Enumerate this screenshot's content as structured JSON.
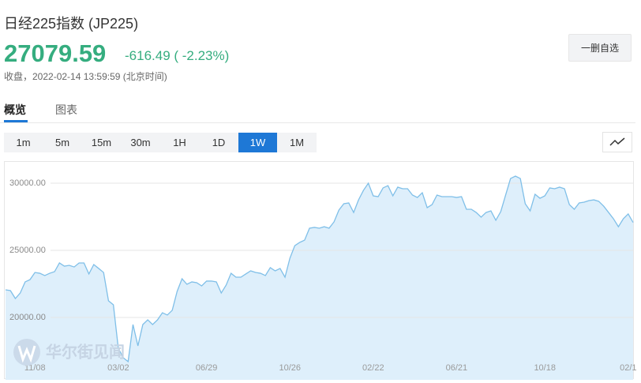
{
  "header": {
    "title": "日经225指数 (JP225)",
    "price": "27079.59",
    "change": "-616.49 ( -2.23%)",
    "status": "收盘，2022-02-14 13:59:59 (北京时间)",
    "button": "一删自选"
  },
  "tabs": {
    "items": [
      "概览",
      "图表"
    ],
    "selected": "概览"
  },
  "periods": {
    "items": [
      "1m",
      "5m",
      "15m",
      "30m",
      "1H",
      "1D",
      "1W",
      "1M"
    ],
    "selected": "1W"
  },
  "watermark": "华尔街见闻",
  "chart_data": {
    "type": "area",
    "line_color": "#7fbfe8",
    "fill_color": "#deeffb",
    "grid": true,
    "ylim": [
      15350,
      31590
    ],
    "yticks": [
      {
        "value": 20000,
        "label": "20000.00"
      },
      {
        "value": 25000,
        "label": "25000.00"
      },
      {
        "value": 30000,
        "label": "30000.00"
      }
    ],
    "categories": [
      null,
      null,
      null,
      null,
      null,
      null,
      "11/08",
      null,
      null,
      null,
      null,
      null,
      null,
      null,
      null,
      null,
      null,
      null,
      null,
      null,
      null,
      null,
      null,
      "03/02",
      null,
      null,
      null,
      null,
      null,
      null,
      null,
      null,
      null,
      null,
      null,
      null,
      null,
      null,
      null,
      null,
      null,
      "06/29",
      null,
      null,
      null,
      null,
      null,
      null,
      null,
      null,
      null,
      null,
      null,
      null,
      null,
      null,
      null,
      null,
      "10/26",
      null,
      null,
      null,
      null,
      null,
      null,
      null,
      null,
      null,
      null,
      null,
      null,
      null,
      null,
      null,
      null,
      "02/22",
      null,
      null,
      null,
      null,
      null,
      null,
      null,
      null,
      null,
      null,
      null,
      null,
      null,
      null,
      null,
      null,
      "06/21",
      null,
      null,
      null,
      null,
      null,
      null,
      null,
      null,
      null,
      null,
      null,
      null,
      null,
      null,
      null,
      null,
      null,
      "10/18",
      null,
      null,
      null,
      null,
      null,
      null,
      null,
      null,
      null,
      null,
      null,
      null,
      null,
      null,
      null,
      null,
      "02/1",
      null
    ],
    "values": [
      22060,
      22000,
      21410,
      21820,
      22650,
      22820,
      23350,
      23290,
      23120,
      23290,
      23410,
      24060,
      23820,
      23880,
      23760,
      24060,
      24060,
      23240,
      23940,
      23650,
      23350,
      21240,
      20940,
      17710,
      17000,
      16710,
      19470,
      17880,
      19470,
      19820,
      19470,
      19820,
      20350,
      20180,
      20530,
      21940,
      22880,
      22470,
      22650,
      22590,
      22350,
      22710,
      22710,
      22650,
      21820,
      22410,
      23290,
      23000,
      23000,
      23240,
      23470,
      23350,
      23290,
      23120,
      23710,
      23470,
      23650,
      23000,
      24410,
      25350,
      25590,
      25760,
      26650,
      26710,
      26650,
      26760,
      26650,
      27120,
      28000,
      28470,
      28530,
      27820,
      28760,
      29470,
      30000,
      29060,
      29000,
      29650,
      29820,
      29060,
      29710,
      29590,
      29590,
      29120,
      28940,
      29290,
      28180,
      28410,
      29120,
      29000,
      29000,
      29000,
      28940,
      29000,
      28060,
      28060,
      27820,
      27470,
      27820,
      27940,
      27240,
      27880,
      29120,
      30350,
      30530,
      30350,
      28470,
      27940,
      29180,
      28880,
      29060,
      29650,
      29590,
      29710,
      29590,
      28410,
      28060,
      28530,
      28590,
      28710,
      28760,
      28650,
      28290,
      27820,
      27350,
      26760,
      27350,
      27710,
      27080
    ]
  }
}
